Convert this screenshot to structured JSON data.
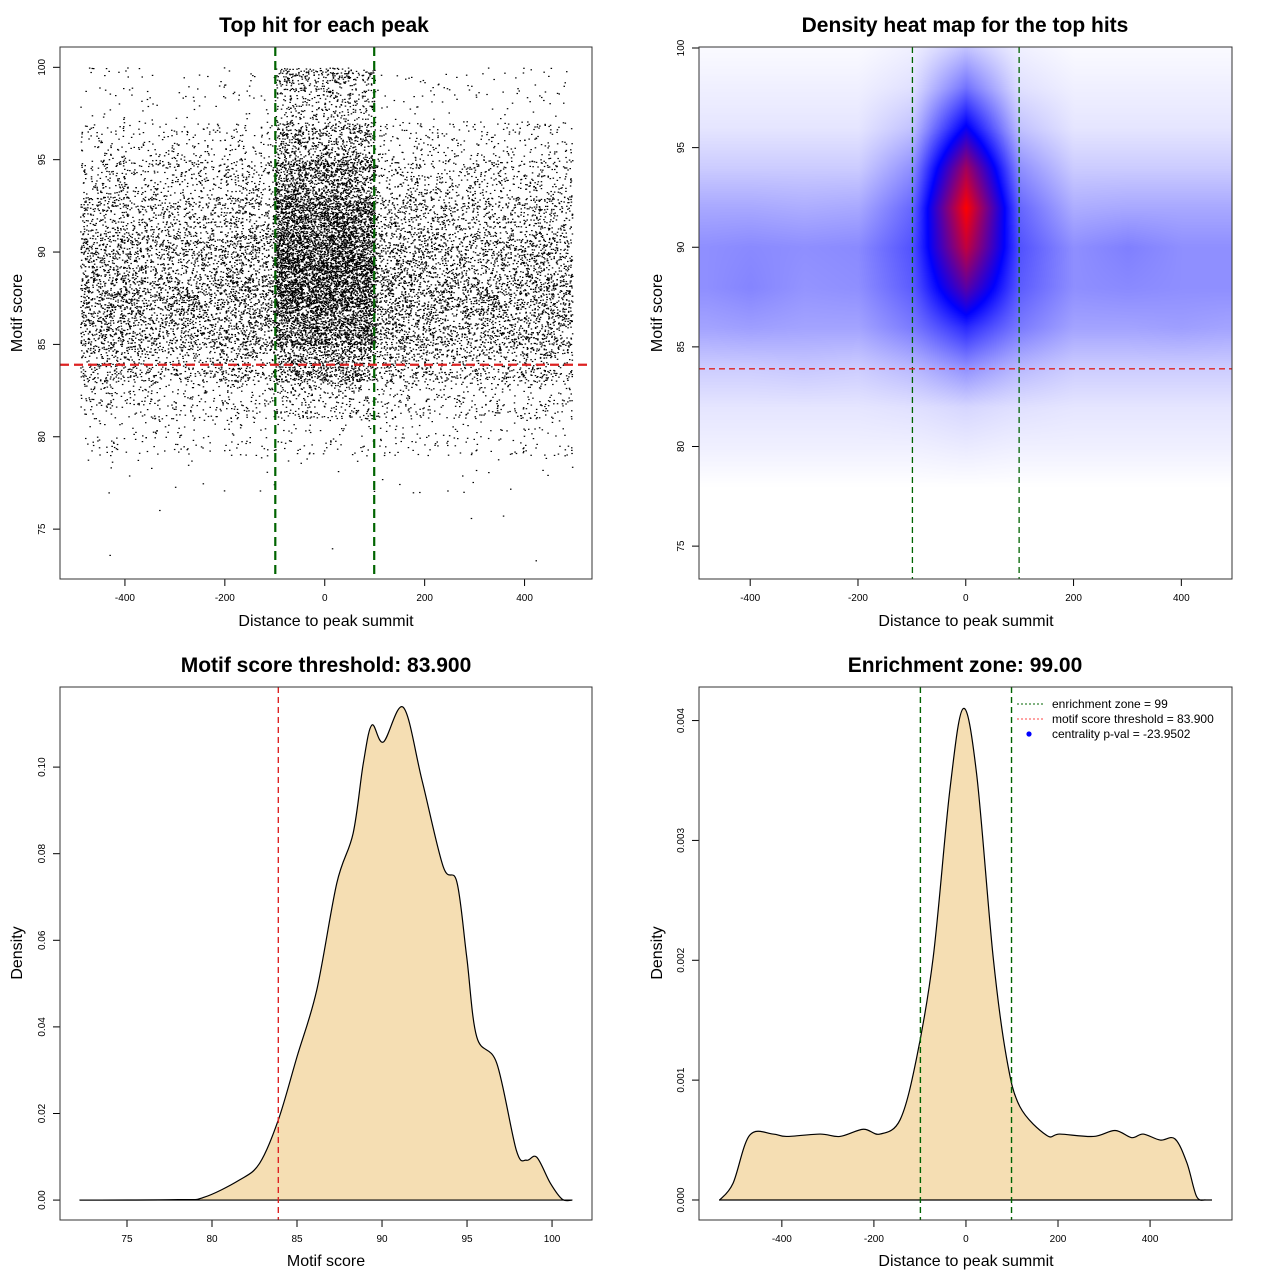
{
  "chart_data": [
    {
      "type": "scatter",
      "title": "Top hit for each peak",
      "xlabel": "Distance to peak summit",
      "ylabel": "Motif score",
      "xlim": [
        -530,
        535
      ],
      "ylim": [
        72.3,
        101.1
      ],
      "xticks": [
        "-400",
        "-200",
        "0",
        "200",
        "400"
      ],
      "yticks": [
        "75",
        "80",
        "85",
        "90",
        "95",
        "100"
      ],
      "point_color": "#000000",
      "enrichment_zone_lines": [
        -99,
        99
      ],
      "enrichment_zone_color": "#006400",
      "threshold_line": 83.9,
      "threshold_color": "#dd2222",
      "binned_points": {
        "x_edges": [
          -490,
          -400,
          -300,
          -200,
          -100,
          0,
          100,
          200,
          300,
          400,
          495
        ],
        "y_edges": [
          73,
          75,
          77,
          79,
          81,
          83,
          85,
          87,
          89,
          91,
          93,
          95,
          97,
          99,
          100
        ],
        "counts": [
          [
            1,
            1,
            3,
            30,
            70,
            170,
            250,
            270,
            230,
            170,
            110,
            55,
            15,
            8
          ],
          [
            0,
            1,
            4,
            28,
            72,
            165,
            245,
            275,
            235,
            165,
            105,
            50,
            14,
            6
          ],
          [
            0,
            0,
            4,
            30,
            68,
            172,
            255,
            268,
            228,
            172,
            112,
            56,
            16,
            7
          ],
          [
            0,
            0,
            4,
            32,
            80,
            200,
            290,
            310,
            270,
            200,
            130,
            60,
            15,
            8
          ],
          [
            0,
            0,
            3,
            30,
            130,
            400,
            700,
            900,
            900,
            750,
            500,
            280,
            150,
            120
          ],
          [
            1,
            0,
            3,
            30,
            130,
            400,
            700,
            900,
            900,
            750,
            500,
            280,
            150,
            120
          ],
          [
            0,
            0,
            4,
            32,
            80,
            200,
            290,
            310,
            270,
            200,
            130,
            60,
            15,
            8
          ],
          [
            0,
            1,
            4,
            30,
            70,
            170,
            250,
            270,
            230,
            170,
            110,
            55,
            15,
            7
          ],
          [
            0,
            1,
            4,
            28,
            70,
            168,
            250,
            272,
            232,
            168,
            108,
            54,
            15,
            7
          ],
          [
            1,
            0,
            4,
            30,
            70,
            170,
            250,
            270,
            230,
            170,
            110,
            55,
            15,
            8
          ]
        ]
      }
    },
    {
      "type": "heatmap",
      "title": "Density heat map for the top hits",
      "xlabel": "Distance to peak summit",
      "ylabel": "Motif score",
      "xlim": [
        -495,
        494
      ],
      "ylim": [
        73.35,
        100.05
      ],
      "xticks": [
        "-400",
        "-200",
        "0",
        "200",
        "400"
      ],
      "yticks": [
        "75",
        "80",
        "85",
        "90",
        "95",
        "100"
      ],
      "colormap": [
        "#ffffff",
        "#0000ff",
        "#ff0000"
      ],
      "enrichment_zone_lines": [
        -99,
        99
      ],
      "enrichment_zone_color": "#006400",
      "threshold_line": 83.9,
      "threshold_color": "#dd2222",
      "x": [
        -480,
        -400,
        -300,
        -200,
        -100,
        0,
        100,
        200,
        300,
        400,
        480
      ],
      "y": [
        78,
        80,
        82,
        84,
        86,
        88,
        90,
        92,
        94,
        96,
        98,
        100
      ],
      "z": [
        [
          0,
          0,
          0,
          0,
          0,
          0,
          0,
          0,
          0,
          0,
          0
        ],
        [
          0.03,
          0.03,
          0.03,
          0.03,
          0.03,
          0.04,
          0.03,
          0.03,
          0.03,
          0.03,
          0.03
        ],
        [
          0.05,
          0.05,
          0.05,
          0.05,
          0.06,
          0.08,
          0.06,
          0.05,
          0.05,
          0.05,
          0.05
        ],
        [
          0.1,
          0.1,
          0.11,
          0.1,
          0.14,
          0.22,
          0.14,
          0.1,
          0.1,
          0.1,
          0.1
        ],
        [
          0.18,
          0.19,
          0.18,
          0.18,
          0.26,
          0.42,
          0.26,
          0.18,
          0.18,
          0.19,
          0.18
        ],
        [
          0.22,
          0.24,
          0.21,
          0.22,
          0.32,
          0.68,
          0.32,
          0.22,
          0.23,
          0.22,
          0.22
        ],
        [
          0.22,
          0.23,
          0.22,
          0.23,
          0.34,
          0.88,
          0.34,
          0.22,
          0.25,
          0.22,
          0.22
        ],
        [
          0.17,
          0.17,
          0.16,
          0.17,
          0.3,
          1.0,
          0.3,
          0.16,
          0.17,
          0.17,
          0.17
        ],
        [
          0.1,
          0.1,
          0.1,
          0.1,
          0.22,
          0.82,
          0.22,
          0.1,
          0.1,
          0.1,
          0.1
        ],
        [
          0.05,
          0.05,
          0.05,
          0.05,
          0.12,
          0.52,
          0.12,
          0.05,
          0.05,
          0.05,
          0.05
        ],
        [
          0.03,
          0.03,
          0.03,
          0.03,
          0.06,
          0.28,
          0.06,
          0.03,
          0.03,
          0.03,
          0.03
        ],
        [
          0.01,
          0.01,
          0.01,
          0.01,
          0.03,
          0.12,
          0.03,
          0.01,
          0.01,
          0.01,
          0.01
        ]
      ]
    },
    {
      "type": "area",
      "title": "Motif score threshold: 83.900",
      "xlabel": "Motif score",
      "ylabel": "Density",
      "xlim": [
        71.06,
        102.35
      ],
      "ylim": [
        -0.0046,
        0.1185
      ],
      "xticks": [
        "75",
        "80",
        "85",
        "90",
        "95",
        "100"
      ],
      "yticks": [
        "0.00",
        "0.02",
        "0.04",
        "0.06",
        "0.08",
        "0.10"
      ],
      "fill_color": "#f5deb3",
      "threshold_line": 83.9,
      "threshold_color": "#dd2222",
      "x": [
        72.2,
        78.0,
        79.5,
        81.6,
        82.8,
        83.9,
        85.0,
        86.16,
        87.34,
        88.3,
        88.9,
        89.4,
        90.08,
        91.25,
        92.35,
        93.6,
        94.4,
        94.98,
        95.57,
        96.75,
        97.9,
        98.5,
        99.1,
        99.9,
        100.6,
        101.2
      ],
      "y": [
        0,
        0.0001,
        0.0006,
        0.0046,
        0.0085,
        0.0185,
        0.0331,
        0.0485,
        0.0732,
        0.0847,
        0.1009,
        0.1097,
        0.1058,
        0.1138,
        0.097,
        0.077,
        0.0735,
        0.0562,
        0.0377,
        0.0316,
        0.0115,
        0.0092,
        0.0099,
        0.0039,
        0.0002,
        0
      ]
    },
    {
      "type": "area",
      "title": "Enrichment zone: 99.00",
      "xlabel": "Distance to peak summit",
      "ylabel": "Density",
      "xlim": [
        -580,
        578
      ],
      "ylim": [
        -0.000167,
        0.00428
      ],
      "xticks": [
        "-400",
        "-200",
        "0",
        "200",
        "400"
      ],
      "yticks": [
        "0.000",
        "0.001",
        "0.002",
        "0.003",
        "0.004"
      ],
      "fill_color": "#f5deb3",
      "enrichment_zone_lines": [
        -99,
        99
      ],
      "enrichment_zone_color": "#006400",
      "x": [
        -535,
        -506,
        -470,
        -419,
        -390,
        -317,
        -274,
        -223,
        -187,
        -143,
        -107,
        -71,
        -35,
        -6,
        23,
        59,
        88,
        117,
        175,
        204,
        277,
        324,
        360,
        385,
        422,
        454,
        480,
        501,
        520
      ],
      "y": [
        0,
        0.00014,
        0.00054,
        0.00055,
        0.00053,
        0.00055,
        0.00053,
        0.00059,
        0.00055,
        0.00067,
        0.00119,
        0.00203,
        0.00342,
        0.0041,
        0.00356,
        0.00203,
        0.00119,
        0.00078,
        0.00054,
        0.00055,
        0.00053,
        0.00058,
        0.00052,
        0.00055,
        0.0005,
        0.00051,
        0.00031,
        3e-05,
        0
      ],
      "legend": {
        "position": "top-right",
        "items": [
          {
            "label": "enrichment zone = 99",
            "color": "#006400",
            "symbol": "dotted-line"
          },
          {
            "label": "motif score threshold = 83.900",
            "color": "#ff4444",
            "symbol": "dotted-line"
          },
          {
            "label": "centrality p-val = -23.9502",
            "color": "#0000ff",
            "symbol": "dot"
          }
        ]
      }
    }
  ]
}
